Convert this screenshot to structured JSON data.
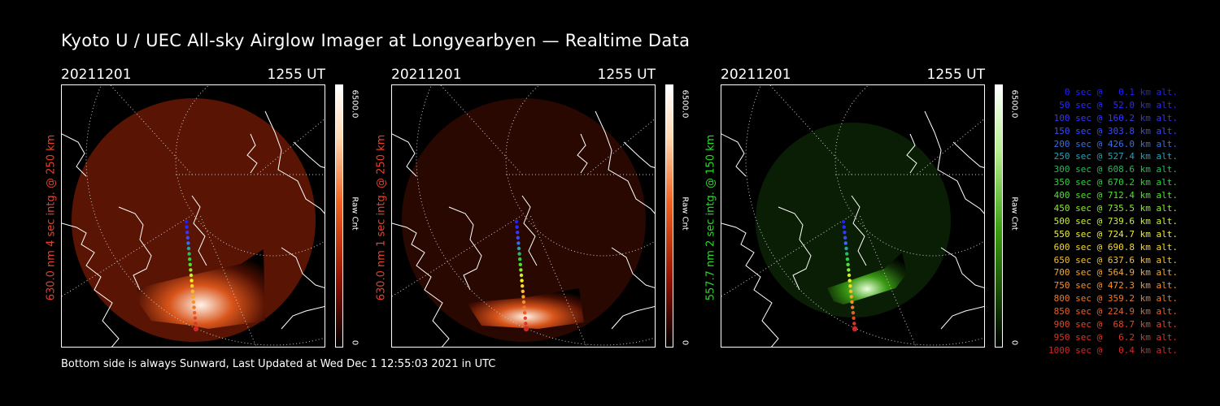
{
  "title": "Kyoto U / UEC All-sky Airglow Imager at Longyearbyen — Realtime Data",
  "panels": [
    {
      "date": "20211201",
      "time": "1255 UT",
      "ylabel": "630.0 nm 4 sec intg. @ 250 km",
      "ylabel_color": "#e8402a",
      "cbar_max": "6500.0",
      "cbar_min": "0",
      "cbar_unit": "Raw Cnt",
      "colormap": "red",
      "intensity": "strong"
    },
    {
      "date": "20211201",
      "time": "1255 UT",
      "ylabel": "630.0 nm 1 sec intg. @ 250 km",
      "ylabel_color": "#e8402a",
      "cbar_max": "6500.0",
      "cbar_min": "0",
      "cbar_unit": "Raw Cnt",
      "colormap": "red",
      "intensity": "medium"
    },
    {
      "date": "20211201",
      "time": "1255 UT",
      "ylabel": "557.7 nm 2 sec intg. @ 150 km",
      "ylabel_color": "#2ed62e",
      "cbar_max": "6500.0",
      "cbar_min": "0",
      "cbar_unit": "Raw Cnt",
      "colormap": "green",
      "intensity": "green"
    }
  ],
  "footer": "Bottom side is always Sunward, Last Updated at Wed Dec  1 12:55:03 2021 in UTC",
  "legend": [
    {
      "text": "   0 sec @   0.1 km alt.",
      "color": "#2020ff"
    },
    {
      "text": "  50 sec @  52.0 km alt.",
      "color": "#2a2aff"
    },
    {
      "text": " 100 sec @ 160.2 km alt.",
      "color": "#3535ff"
    },
    {
      "text": " 150 sec @ 303.8 km alt.",
      "color": "#3a4aff"
    },
    {
      "text": " 200 sec @ 426.0 km alt.",
      "color": "#3a6ee0"
    },
    {
      "text": " 250 sec @ 527.4 km alt.",
      "color": "#2aa0b0"
    },
    {
      "text": " 300 sec @ 608.6 km alt.",
      "color": "#2ab860"
    },
    {
      "text": " 350 sec @ 670.2 km alt.",
      "color": "#30d040"
    },
    {
      "text": " 400 sec @ 712.4 km alt.",
      "color": "#50e030"
    },
    {
      "text": " 450 sec @ 735.5 km alt.",
      "color": "#90ea30"
    },
    {
      "text": " 500 sec @ 739.6 km alt.",
      "color": "#c8f030"
    },
    {
      "text": " 550 sec @ 724.7 km alt.",
      "color": "#f0f028"
    },
    {
      "text": " 600 sec @ 690.8 km alt.",
      "color": "#f8d828"
    },
    {
      "text": " 650 sec @ 637.6 km alt.",
      "color": "#f8c028"
    },
    {
      "text": " 700 sec @ 564.9 km alt.",
      "color": "#f8a828"
    },
    {
      "text": " 750 sec @ 472.3 km alt.",
      "color": "#f89028"
    },
    {
      "text": " 800 sec @ 359.2 km alt.",
      "color": "#f07828"
    },
    {
      "text": " 850 sec @ 224.9 km alt.",
      "color": "#e86028"
    },
    {
      "text": " 900 sec @  68.7 km alt.",
      "color": "#e04828"
    },
    {
      "text": " 950 sec @   6.2 km alt.",
      "color": "#d83828"
    },
    {
      "text": "1000 sec @   0.4 km alt.",
      "color": "#d02828"
    }
  ]
}
